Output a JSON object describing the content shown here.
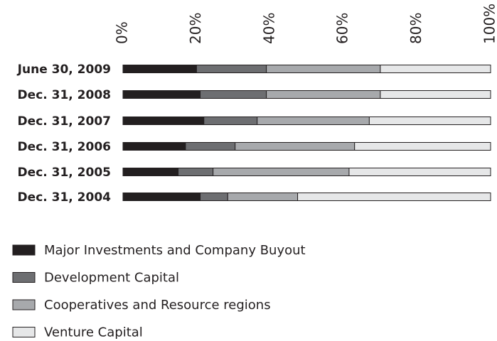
{
  "chart_data": {
    "type": "stacked-bar-horizontal",
    "categories": [
      "June 30, 2009",
      "Dec. 31, 2008",
      "Dec. 31, 2007",
      "Dec. 31, 2006",
      "Dec. 31, 2005",
      "Dec. 31, 2004"
    ],
    "series": [
      {
        "name": "Major Investments and Company Buyout",
        "color": "#231f20",
        "values": [
          20,
          21,
          22,
          17,
          15,
          21
        ]
      },
      {
        "name": "Development Capital",
        "color": "#6d6e71",
        "values": [
          19,
          18,
          14.5,
          13.5,
          9.5,
          7.5
        ]
      },
      {
        "name": "Cooperatives and Resource regions",
        "color": "#a7a9ac",
        "values": [
          31,
          31,
          30.5,
          32.5,
          37,
          19
        ]
      },
      {
        "name": "Venture Capital",
        "color": "#e6e7e8",
        "values": [
          30,
          30,
          33,
          37,
          38.5,
          52.5
        ]
      }
    ],
    "xlim": [
      0,
      100
    ],
    "xticks": [
      {
        "value": 0,
        "label": "0%"
      },
      {
        "value": 20,
        "label": "20%"
      },
      {
        "value": 40,
        "label": "40%"
      },
      {
        "value": 60,
        "label": "60%"
      },
      {
        "value": 80,
        "label": "80%"
      },
      {
        "value": 100,
        "label": "100%"
      }
    ],
    "legend": "bottom-left"
  }
}
